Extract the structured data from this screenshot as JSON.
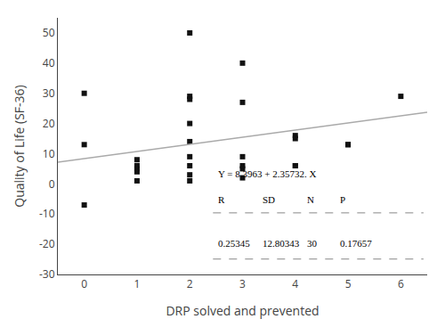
{
  "chart_data": {
    "type": "scatter",
    "xlabel": "DRP solved and prevented",
    "ylabel": "Quality of Life (SF-36)",
    "series": [
      {
        "type": "scatter",
        "marker": "square",
        "color": "#111111",
        "x": [
          0,
          0,
          0,
          1,
          1,
          1,
          1,
          1,
          2,
          2,
          2,
          2,
          2,
          2,
          2,
          2,
          2,
          3,
          3,
          3,
          3,
          3,
          3,
          4,
          4,
          4,
          4,
          5,
          5,
          6
        ],
        "values": [
          30,
          13,
          -7,
          8,
          6,
          5,
          4,
          1,
          50,
          29,
          28,
          20,
          14,
          9,
          6,
          3,
          1,
          40,
          27,
          9,
          6,
          5,
          2,
          16,
          15,
          6,
          6,
          13,
          13,
          29
        ]
      },
      {
        "type": "line",
        "line_style": "solid",
        "color": "#aaaaaa",
        "x": [
          -0.5,
          6.5
        ],
        "values": [
          7.21764,
          23.71888
        ]
      }
    ],
    "annotations": [
      "Y = 8.3963 + 2.35732. X"
    ],
    "table": {
      "header": [
        "R",
        "SD",
        "N",
        "P"
      ],
      "row": [
        "0.25345",
        "12.80343",
        "30",
        "0.17657"
      ]
    },
    "xlim": [
      -0.5,
      6.5
    ],
    "ylim": [
      -30,
      55
    ],
    "xticks": [
      0,
      1,
      2,
      3,
      4,
      5,
      6
    ],
    "yticks": [
      -30,
      -20,
      -10,
      0,
      10,
      20,
      30,
      40,
      50
    ],
    "grid": false,
    "legend": false
  }
}
